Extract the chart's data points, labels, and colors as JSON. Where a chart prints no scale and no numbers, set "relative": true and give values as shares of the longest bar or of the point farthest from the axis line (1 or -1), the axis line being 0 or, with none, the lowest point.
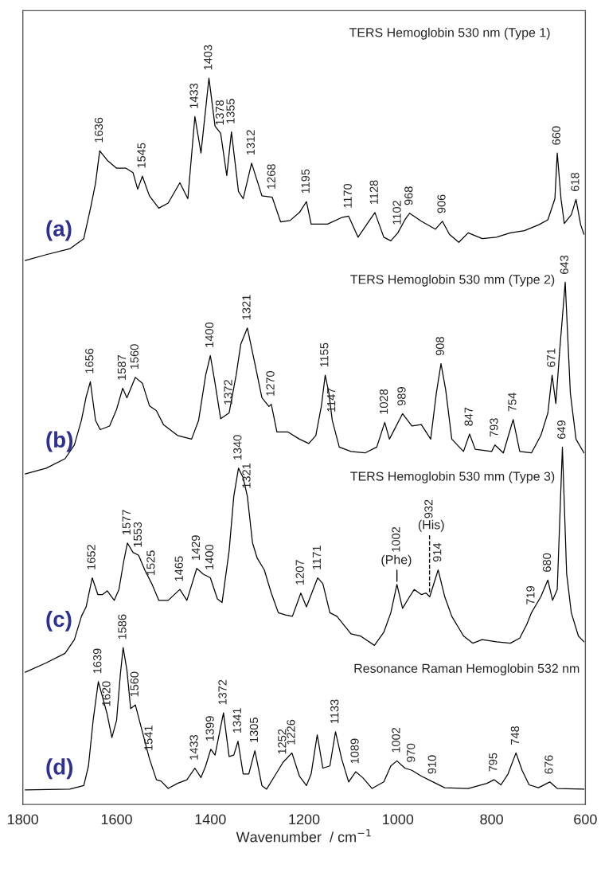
{
  "chart_data": {
    "type": "line",
    "relative": true,
    "xlabel": "Wavenumber  / cm$^{−1}$",
    "xlim": [
      1800,
      600
    ],
    "xticks": [
      1800,
      1600,
      1400,
      1200,
      1000,
      800,
      600
    ],
    "grid": false,
    "legend": false,
    "marker": "none",
    "line_style": "solid",
    "tick_labels": "x",
    "series": [
      {
        "name": "(a)",
        "color": "#000000",
        "x": [
          1795,
          1750,
          1700,
          1670,
          1655,
          1645,
          1636,
          1620,
          1600,
          1580,
          1565,
          1555,
          1545,
          1530,
          1510,
          1490,
          1465,
          1448,
          1433,
          1420,
          1403,
          1390,
          1378,
          1365,
          1355,
          1340,
          1330,
          1312,
          1290,
          1268,
          1250,
          1230,
          1210,
          1195,
          1185,
          1150,
          1120,
          1105,
          1085,
          1049,
          1030,
          1015,
          1000,
          985,
          975,
          950,
          920,
          905,
          890,
          870,
          850,
          820,
          790,
          760,
          730,
          700,
          680,
          665,
          660,
          652,
          645,
          630,
          620,
          610,
          603
        ],
        "values": [
          0.749,
          0.757,
          0.765,
          0.779,
          0.823,
          0.855,
          0.9,
          0.887,
          0.876,
          0.876,
          0.87,
          0.847,
          0.865,
          0.838,
          0.821,
          0.828,
          0.856,
          0.834,
          0.947,
          0.897,
          1.0,
          0.934,
          0.924,
          0.866,
          0.926,
          0.844,
          0.834,
          0.883,
          0.838,
          0.836,
          0.802,
          0.804,
          0.815,
          0.83,
          0.799,
          0.799,
          0.808,
          0.81,
          0.781,
          0.815,
          0.781,
          0.776,
          0.787,
          0.805,
          0.814,
          0.803,
          0.792,
          0.803,
          0.785,
          0.774,
          0.787,
          0.779,
          0.781,
          0.787,
          0.79,
          0.798,
          0.805,
          0.834,
          0.897,
          0.834,
          0.8,
          0.812,
          0.833,
          0.798,
          0.785
        ]
      },
      {
        "name": "(b)",
        "color": "#000000",
        "x": [
          1795,
          1750,
          1710,
          1690,
          1675,
          1665,
          1656,
          1645,
          1635,
          1615,
          1600,
          1587,
          1578,
          1560,
          1545,
          1530,
          1515,
          1500,
          1470,
          1440,
          1425,
          1410,
          1400,
          1390,
          1378,
          1360,
          1345,
          1335,
          1321,
          1305,
          1290,
          1275,
          1270,
          1258,
          1235,
          1210,
          1190,
          1175,
          1163,
          1155,
          1147,
          1140,
          1125,
          1100,
          1070,
          1045,
          1028,
          1018,
          990,
          970,
          950,
          930,
          918,
          908,
          898,
          885,
          860,
          847,
          835,
          800,
          793,
          775,
          754,
          740,
          715,
          695,
          680,
          671,
          663,
          655,
          643,
          632,
          620,
          603
        ],
        "values": [
          0.455,
          0.463,
          0.476,
          0.495,
          0.529,
          0.561,
          0.582,
          0.529,
          0.516,
          0.521,
          0.544,
          0.573,
          0.56,
          0.588,
          0.58,
          0.549,
          0.542,
          0.523,
          0.508,
          0.503,
          0.529,
          0.591,
          0.618,
          0.58,
          0.531,
          0.539,
          0.591,
          0.634,
          0.656,
          0.607,
          0.56,
          0.548,
          0.551,
          0.513,
          0.513,
          0.503,
          0.497,
          0.508,
          0.549,
          0.591,
          0.566,
          0.529,
          0.492,
          0.486,
          0.484,
          0.492,
          0.526,
          0.503,
          0.538,
          0.521,
          0.523,
          0.503,
          0.566,
          0.607,
          0.571,
          0.503,
          0.486,
          0.51,
          0.489,
          0.486,
          0.495,
          0.484,
          0.53,
          0.486,
          0.484,
          0.508,
          0.539,
          0.591,
          0.552,
          0.623,
          0.719,
          0.566,
          0.503,
          0.484
        ]
      },
      {
        "name": "(c)",
        "color": "#000000",
        "x": [
          1795,
          1750,
          1710,
          1690,
          1675,
          1665,
          1652,
          1640,
          1630,
          1620,
          1605,
          1595,
          1585,
          1577,
          1565,
          1553,
          1540,
          1525,
          1510,
          1490,
          1465,
          1450,
          1429,
          1415,
          1400,
          1385,
          1375,
          1360,
          1350,
          1340,
          1330,
          1321,
          1310,
          1300,
          1285,
          1270,
          1255,
          1240,
          1225,
          1207,
          1195,
          1171,
          1160,
          1145,
          1130,
          1100,
          1080,
          1050,
          1030,
          1015,
          1002,
          990,
          975,
          965,
          950,
          940,
          932,
          914,
          900,
          885,
          860,
          840,
          820,
          790,
          760,
          740,
          725,
          715,
          695,
          680,
          670,
          660,
          649,
          640,
          630,
          615,
          603
        ],
        "values": [
          0.182,
          0.195,
          0.208,
          0.227,
          0.259,
          0.272,
          0.312,
          0.289,
          0.289,
          0.294,
          0.281,
          0.296,
          0.334,
          0.36,
          0.347,
          0.343,
          0.323,
          0.304,
          0.281,
          0.281,
          0.296,
          0.281,
          0.325,
          0.317,
          0.312,
          0.283,
          0.278,
          0.349,
          0.424,
          0.463,
          0.45,
          0.424,
          0.36,
          0.339,
          0.323,
          0.291,
          0.264,
          0.261,
          0.259,
          0.291,
          0.272,
          0.312,
          0.304,
          0.264,
          0.259,
          0.235,
          0.232,
          0.219,
          0.237,
          0.264,
          0.303,
          0.27,
          0.286,
          0.296,
          0.289,
          0.291,
          0.286,
          0.323,
          0.286,
          0.259,
          0.232,
          0.222,
          0.227,
          0.224,
          0.222,
          0.229,
          0.248,
          0.264,
          0.286,
          0.309,
          0.281,
          0.296,
          0.492,
          0.318,
          0.264,
          0.232,
          0.224
        ]
      },
      {
        "name": "(d)",
        "color": "#000000",
        "x": [
          1795,
          1700,
          1670,
          1660,
          1650,
          1639,
          1630,
          1620,
          1610,
          1600,
          1592,
          1586,
          1578,
          1570,
          1560,
          1545,
          1530,
          1515,
          1505,
          1490,
          1470,
          1450,
          1433,
          1420,
          1410,
          1399,
          1390,
          1372,
          1360,
          1350,
          1341,
          1330,
          1318,
          1305,
          1290,
          1280,
          1260,
          1245,
          1226,
          1210,
          1195,
          1185,
          1172,
          1160,
          1145,
          1133,
          1120,
          1105,
          1090,
          1075,
          1055,
          1030,
          1015,
          1002,
          985,
          970,
          950,
          925,
          900,
          850,
          810,
          795,
          780,
          765,
          748,
          735,
          720,
          700,
          676,
          660,
          603
        ],
        "values": [
          0.02,
          0.021,
          0.026,
          0.053,
          0.116,
          0.169,
          0.148,
          0.124,
          0.092,
          0.116,
          0.179,
          0.216,
          0.185,
          0.132,
          0.137,
          0.1,
          0.063,
          0.034,
          0.032,
          0.022,
          0.029,
          0.034,
          0.05,
          0.037,
          0.053,
          0.076,
          0.068,
          0.126,
          0.066,
          0.068,
          0.087,
          0.042,
          0.042,
          0.074,
          0.026,
          0.021,
          0.042,
          0.058,
          0.071,
          0.039,
          0.026,
          0.042,
          0.096,
          0.05,
          0.053,
          0.1,
          0.063,
          0.031,
          0.045,
          0.037,
          0.022,
          0.031,
          0.053,
          0.06,
          0.05,
          0.047,
          0.039,
          0.031,
          0.023,
          0.022,
          0.029,
          0.034,
          0.027,
          0.042,
          0.071,
          0.047,
          0.027,
          0.023,
          0.031,
          0.022,
          0.021
        ]
      }
    ],
    "annotations": [
      {
        "text": "1636",
        "x": 1636,
        "y": 0.9
      },
      {
        "text": "1545",
        "x": 1545,
        "y": 0.865
      },
      {
        "text": "1433",
        "x": 1433,
        "y": 0.947
      },
      {
        "text": "1403",
        "x": 1403,
        "y": 1.0
      },
      {
        "text": "1378",
        "x": 1378,
        "y": 0.924
      },
      {
        "text": "1355",
        "x": 1355,
        "y": 0.926
      },
      {
        "text": "1312",
        "x": 1312,
        "y": 0.883
      },
      {
        "text": "1268",
        "x": 1268,
        "y": 0.836
      },
      {
        "text": "1195",
        "x": 1195,
        "y": 0.83
      },
      {
        "text": "1170",
        "x": 1105,
        "y": 0.81
      },
      {
        "text": "1128",
        "x": 1049,
        "y": 0.815
      },
      {
        "text": "1102",
        "x": 1000,
        "y": 0.787
      },
      {
        "text": "968",
        "x": 975,
        "y": 0.814
      },
      {
        "text": "906",
        "x": 905,
        "y": 0.803
      },
      {
        "text": "660",
        "x": 660,
        "y": 0.897
      },
      {
        "text": "618",
        "x": 620,
        "y": 0.833
      },
      {
        "text": "1656",
        "x": 1656,
        "y": 0.582
      },
      {
        "text": "1587",
        "x": 1587,
        "y": 0.573
      },
      {
        "text": "1560",
        "x": 1560,
        "y": 0.588
      },
      {
        "text": "1400",
        "x": 1400,
        "y": 0.618
      },
      {
        "text": "1372",
        "x": 1360,
        "y": 0.539
      },
      {
        "text": "1321",
        "x": 1321,
        "y": 0.656
      },
      {
        "text": "1270",
        "x": 1270,
        "y": 0.551
      },
      {
        "text": "1155",
        "x": 1155,
        "y": 0.591
      },
      {
        "text": "1147",
        "x": 1140,
        "y": 0.529
      },
      {
        "text": "1028",
        "x": 1028,
        "y": 0.526
      },
      {
        "text": "989",
        "x": 990,
        "y": 0.538
      },
      {
        "text": "908",
        "x": 908,
        "y": 0.607
      },
      {
        "text": "847",
        "x": 847,
        "y": 0.51
      },
      {
        "text": "793",
        "x": 793,
        "y": 0.495
      },
      {
        "text": "754",
        "x": 754,
        "y": 0.53
      },
      {
        "text": "671",
        "x": 671,
        "y": 0.591
      },
      {
        "text": "643",
        "x": 643,
        "y": 0.719
      },
      {
        "text": "1652",
        "x": 1652,
        "y": 0.312
      },
      {
        "text": "1577",
        "x": 1577,
        "y": 0.36
      },
      {
        "text": "1553",
        "x": 1553,
        "y": 0.343
      },
      {
        "text": "1525",
        "x": 1525,
        "y": 0.304
      },
      {
        "text": "1465",
        "x": 1465,
        "y": 0.296
      },
      {
        "text": "1429",
        "x": 1429,
        "y": 0.325
      },
      {
        "text": "1400",
        "x": 1400,
        "y": 0.312
      },
      {
        "text": "1340",
        "x": 1340,
        "y": 0.463
      },
      {
        "text": "1321",
        "x": 1321,
        "y": 0.424
      },
      {
        "text": "1207",
        "x": 1207,
        "y": 0.291
      },
      {
        "text": "1171",
        "x": 1171,
        "y": 0.312
      },
      {
        "text": "914",
        "x": 914,
        "y": 0.323
      },
      {
        "text": "719",
        "x": 715,
        "y": 0.264
      },
      {
        "text": "680",
        "x": 680,
        "y": 0.309
      },
      {
        "text": "649",
        "x": 649,
        "y": 0.492
      },
      {
        "text": "1639",
        "x": 1639,
        "y": 0.169
      },
      {
        "text": "1620",
        "x": 1620,
        "y": 0.124
      },
      {
        "text": "1586",
        "x": 1586,
        "y": 0.216
      },
      {
        "text": "1560",
        "x": 1560,
        "y": 0.137
      },
      {
        "text": "1541",
        "x": 1530,
        "y": 0.063
      },
      {
        "text": "1433",
        "x": 1433,
        "y": 0.05
      },
      {
        "text": "1399",
        "x": 1399,
        "y": 0.076
      },
      {
        "text": "1372",
        "x": 1372,
        "y": 0.126
      },
      {
        "text": "1341",
        "x": 1341,
        "y": 0.087
      },
      {
        "text": "1305",
        "x": 1305,
        "y": 0.074
      },
      {
        "text": "1252",
        "x": 1245,
        "y": 0.058
      },
      {
        "text": "1226",
        "x": 1226,
        "y": 0.071
      },
      {
        "text": "1133",
        "x": 1133,
        "y": 0.1
      },
      {
        "text": "1089",
        "x": 1090,
        "y": 0.045
      },
      {
        "text": "1002",
        "x": 1002,
        "y": 0.06
      },
      {
        "text": "970",
        "x": 970,
        "y": 0.047
      },
      {
        "text": "910",
        "x": 925,
        "y": 0.031
      },
      {
        "text": "795",
        "x": 795,
        "y": 0.034
      },
      {
        "text": "748",
        "x": 748,
        "y": 0.071
      },
      {
        "text": "676",
        "x": 676,
        "y": 0.031
      },
      "TERS Hemoglobin 530 nm (Type 1)",
      "TERS Hemoglobin 530 mm (Type 2)",
      "TERS Hemoglobin 530 mm (Type 3)",
      "Resonance Raman Hemoglobin 532 nm",
      "(Phe)",
      "(His)",
      "1002",
      "932"
    ]
  }
}
